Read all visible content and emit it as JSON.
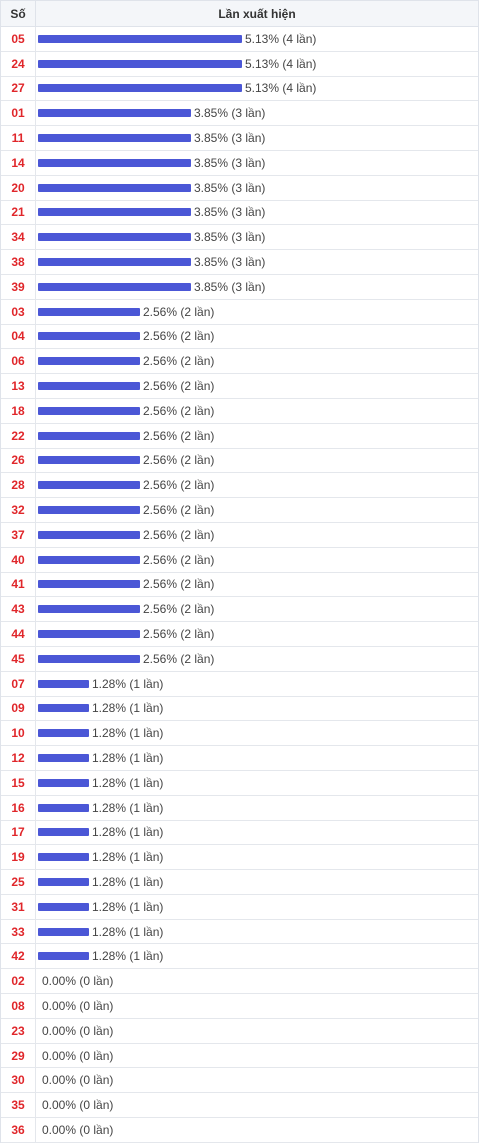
{
  "header": {
    "col_number": "Số",
    "col_freq": "Lần xuất hiện"
  },
  "colors": {
    "bar": "#4b57d6",
    "number": "#e0262a"
  },
  "chart_data": {
    "type": "bar",
    "orientation": "horizontal",
    "xlabel": "Lần xuất hiện",
    "ylabel": "Số",
    "max_percent": 5.13,
    "rows": [
      {
        "number": "05",
        "percent": 5.13,
        "label": "5.13% (4 lần)"
      },
      {
        "number": "24",
        "percent": 5.13,
        "label": "5.13% (4 lần)"
      },
      {
        "number": "27",
        "percent": 5.13,
        "label": "5.13% (4 lần)"
      },
      {
        "number": "01",
        "percent": 3.85,
        "label": "3.85% (3 lần)"
      },
      {
        "number": "11",
        "percent": 3.85,
        "label": "3.85% (3 lần)"
      },
      {
        "number": "14",
        "percent": 3.85,
        "label": "3.85% (3 lần)"
      },
      {
        "number": "20",
        "percent": 3.85,
        "label": "3.85% (3 lần)"
      },
      {
        "number": "21",
        "percent": 3.85,
        "label": "3.85% (3 lần)"
      },
      {
        "number": "34",
        "percent": 3.85,
        "label": "3.85% (3 lần)"
      },
      {
        "number": "38",
        "percent": 3.85,
        "label": "3.85% (3 lần)"
      },
      {
        "number": "39",
        "percent": 3.85,
        "label": "3.85% (3 lần)"
      },
      {
        "number": "03",
        "percent": 2.56,
        "label": "2.56% (2 lần)"
      },
      {
        "number": "04",
        "percent": 2.56,
        "label": "2.56% (2 lần)"
      },
      {
        "number": "06",
        "percent": 2.56,
        "label": "2.56% (2 lần)"
      },
      {
        "number": "13",
        "percent": 2.56,
        "label": "2.56% (2 lần)"
      },
      {
        "number": "18",
        "percent": 2.56,
        "label": "2.56% (2 lần)"
      },
      {
        "number": "22",
        "percent": 2.56,
        "label": "2.56% (2 lần)"
      },
      {
        "number": "26",
        "percent": 2.56,
        "label": "2.56% (2 lần)"
      },
      {
        "number": "28",
        "percent": 2.56,
        "label": "2.56% (2 lần)"
      },
      {
        "number": "32",
        "percent": 2.56,
        "label": "2.56% (2 lần)"
      },
      {
        "number": "37",
        "percent": 2.56,
        "label": "2.56% (2 lần)"
      },
      {
        "number": "40",
        "percent": 2.56,
        "label": "2.56% (2 lần)"
      },
      {
        "number": "41",
        "percent": 2.56,
        "label": "2.56% (2 lần)"
      },
      {
        "number": "43",
        "percent": 2.56,
        "label": "2.56% (2 lần)"
      },
      {
        "number": "44",
        "percent": 2.56,
        "label": "2.56% (2 lần)"
      },
      {
        "number": "45",
        "percent": 2.56,
        "label": "2.56% (2 lần)"
      },
      {
        "number": "07",
        "percent": 1.28,
        "label": "1.28% (1 lần)"
      },
      {
        "number": "09",
        "percent": 1.28,
        "label": "1.28% (1 lần)"
      },
      {
        "number": "10",
        "percent": 1.28,
        "label": "1.28% (1 lần)"
      },
      {
        "number": "12",
        "percent": 1.28,
        "label": "1.28% (1 lần)"
      },
      {
        "number": "15",
        "percent": 1.28,
        "label": "1.28% (1 lần)"
      },
      {
        "number": "16",
        "percent": 1.28,
        "label": "1.28% (1 lần)"
      },
      {
        "number": "17",
        "percent": 1.28,
        "label": "1.28% (1 lần)"
      },
      {
        "number": "19",
        "percent": 1.28,
        "label": "1.28% (1 lần)"
      },
      {
        "number": "25",
        "percent": 1.28,
        "label": "1.28% (1 lần)"
      },
      {
        "number": "31",
        "percent": 1.28,
        "label": "1.28% (1 lần)"
      },
      {
        "number": "33",
        "percent": 1.28,
        "label": "1.28% (1 lần)"
      },
      {
        "number": "42",
        "percent": 1.28,
        "label": "1.28% (1 lần)"
      },
      {
        "number": "02",
        "percent": 0,
        "label": "0.00% (0 lần)"
      },
      {
        "number": "08",
        "percent": 0,
        "label": "0.00% (0 lần)"
      },
      {
        "number": "23",
        "percent": 0,
        "label": "0.00% (0 lần)"
      },
      {
        "number": "29",
        "percent": 0,
        "label": "0.00% (0 lần)"
      },
      {
        "number": "30",
        "percent": 0,
        "label": "0.00% (0 lần)"
      },
      {
        "number": "35",
        "percent": 0,
        "label": "0.00% (0 lần)"
      },
      {
        "number": "36",
        "percent": 0,
        "label": "0.00% (0 lần)"
      }
    ]
  }
}
